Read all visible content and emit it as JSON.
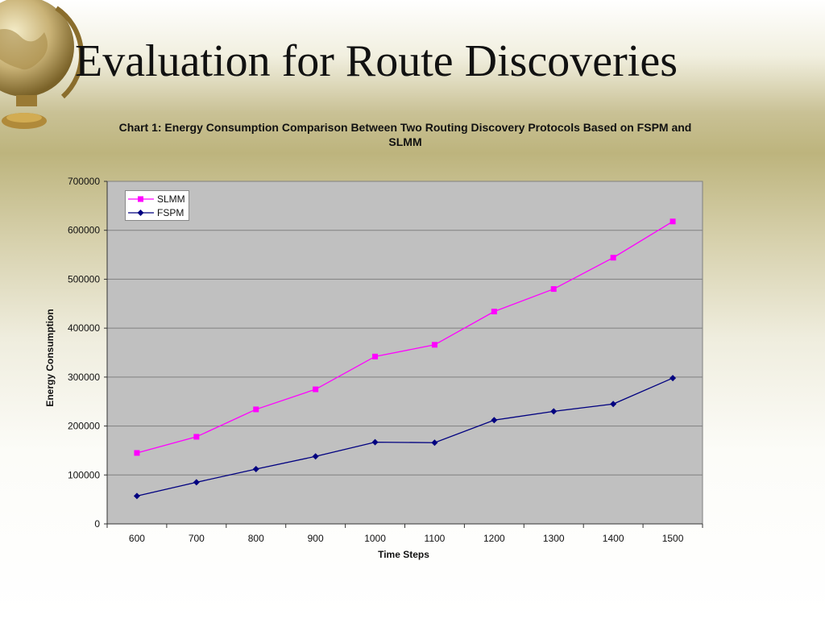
{
  "slide": {
    "title": "Evaluation for Route Discoveries"
  },
  "chart_data": {
    "type": "line",
    "title": "Chart 1: Energy Consumption Comparison Between Two Routing Discovery Protocols Based on FSPM and SLMM",
    "xlabel": "Time Steps",
    "ylabel": "Energy Consumption",
    "categories": [
      "600",
      "700",
      "800",
      "900",
      "1000",
      "1100",
      "1200",
      "1300",
      "1400",
      "1500"
    ],
    "yticks": [
      0,
      100000,
      200000,
      300000,
      400000,
      500000,
      600000,
      700000
    ],
    "ylim": [
      0,
      700000
    ],
    "grid": true,
    "legend_position": "top-left",
    "plot_background": "#c0c0c0",
    "series": [
      {
        "name": "SLMM",
        "color": "#ff00ff",
        "marker": "square",
        "values": [
          145000,
          178000,
          234000,
          275000,
          342000,
          366000,
          434000,
          480000,
          544000,
          618000
        ]
      },
      {
        "name": "FSPM",
        "color": "#000080",
        "marker": "diamond",
        "values": [
          57000,
          85000,
          112000,
          138000,
          167000,
          166000,
          212000,
          230000,
          245000,
          298000
        ]
      }
    ]
  }
}
